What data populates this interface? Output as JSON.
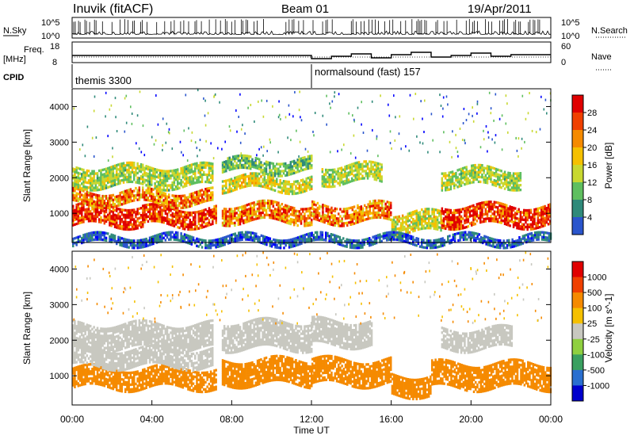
{
  "header": {
    "station": "Inuvik (fitACF)",
    "beam": "Beam 01",
    "date": "19/Apr/2011"
  },
  "panels_top": {
    "nsky_label": "N.Sky",
    "nsky_ticks": [
      "10^5",
      "10^0"
    ],
    "nsearch_label": "N.Search",
    "nsearch_ticks": [
      "10^5",
      "10^0"
    ],
    "freq_label": "Freq.",
    "freq_unit": "[MHz]",
    "freq_ticks": [
      "18",
      "8"
    ],
    "nave_label": "Nave",
    "nave_ticks": [
      "60",
      "0"
    ],
    "cpid_label": "CPID",
    "cpid_segments": [
      {
        "name": "themis 3300",
        "start_hour": 0,
        "end_hour": 12
      },
      {
        "name": "normalsound (fast) 157",
        "start_hour": 12,
        "end_hour": 24
      }
    ]
  },
  "chart_data": [
    {
      "type": "heatmap",
      "name": "power",
      "ylabel": "Slant Range [km]",
      "xlabel": "",
      "ylim": [
        180,
        4500
      ],
      "xlim_hours": [
        0,
        24
      ],
      "yticks": [
        1000,
        2000,
        3000,
        4000
      ],
      "colorbar": {
        "label": "Power [dB]",
        "ticks": [
          4,
          8,
          12,
          16,
          20,
          24,
          28
        ],
        "range": [
          0,
          30
        ],
        "colors": [
          "#0000ff",
          "#2a55cc",
          "#2f8a7a",
          "#5fbf5f",
          "#c8d830",
          "#f5c000",
          "#f58a00",
          "#f04000",
          "#e00000"
        ]
      },
      "bands": [
        {
          "hour_start": 0.0,
          "hour_end": 3.5,
          "range_start": 700,
          "range_end": 1300,
          "value": 27
        },
        {
          "hour_start": 3.5,
          "hour_end": 7.2,
          "range_start": 700,
          "range_end": 1200,
          "value": 27
        },
        {
          "hour_start": 0.0,
          "hour_end": 7.0,
          "range_start": 1300,
          "range_end": 1700,
          "value": 22
        },
        {
          "hour_start": 0.0,
          "hour_end": 7.0,
          "range_start": 1800,
          "range_end": 2400,
          "value": 14
        },
        {
          "hour_start": 7.5,
          "hour_end": 12.0,
          "range_start": 800,
          "range_end": 1300,
          "value": 22
        },
        {
          "hour_start": 7.5,
          "hour_end": 12.0,
          "range_start": 1700,
          "range_end": 2100,
          "value": 16
        },
        {
          "hour_start": 7.5,
          "hour_end": 12.0,
          "range_start": 2200,
          "range_end": 2600,
          "value": 12
        },
        {
          "hour_start": 12.0,
          "hour_end": 16.0,
          "range_start": 800,
          "range_end": 1300,
          "value": 22
        },
        {
          "hour_start": 12.5,
          "hour_end": 15.5,
          "range_start": 1900,
          "range_end": 2400,
          "value": 14
        },
        {
          "hour_start": 16.0,
          "hour_end": 18.5,
          "range_start": 500,
          "range_end": 1100,
          "value": 16
        },
        {
          "hour_start": 18.5,
          "hour_end": 24.0,
          "range_start": 700,
          "range_end": 1300,
          "value": 27
        },
        {
          "hour_start": 18.5,
          "hour_end": 22.5,
          "range_start": 1800,
          "range_end": 2300,
          "value": 14
        },
        {
          "hour_start": 0.0,
          "hour_end": 24.0,
          "range_start": 180,
          "range_end": 400,
          "value": 6
        }
      ]
    },
    {
      "type": "heatmap",
      "name": "velocity",
      "ylabel": "Slant Range [km]",
      "xlabel": "Time UT",
      "ylim": [
        180,
        4500
      ],
      "xlim_hours": [
        0,
        24
      ],
      "yticks": [
        1000,
        2000,
        3000,
        4000
      ],
      "xticks": [
        "00:00",
        "04:00",
        "08:00",
        "12:00",
        "16:00",
        "20:00",
        "00:00"
      ],
      "colorbar": {
        "label": "Velocity [m s^-1]",
        "ticks": [
          "1000",
          "500",
          "100",
          "25",
          "-25",
          "-100",
          "-500",
          "-1000"
        ],
        "colors": [
          "#0000cc",
          "#2a6fd0",
          "#3aa060",
          "#8fd040",
          "#c8c8c0",
          "#f5c000",
          "#f58a00",
          "#f04000",
          "#e00000"
        ]
      },
      "bands": [
        {
          "hour_start": 0.0,
          "hour_end": 7.2,
          "range_start": 700,
          "range_end": 1300,
          "value": -300
        },
        {
          "hour_start": 0.0,
          "hour_end": 7.0,
          "range_start": 1300,
          "range_end": 1800,
          "value": 0
        },
        {
          "hour_start": 0.0,
          "hour_end": 7.0,
          "range_start": 1800,
          "range_end": 2500,
          "value": 0
        },
        {
          "hour_start": 7.5,
          "hour_end": 12.0,
          "range_start": 800,
          "range_end": 1500,
          "value": -300
        },
        {
          "hour_start": 7.5,
          "hour_end": 12.0,
          "range_start": 1800,
          "range_end": 2600,
          "value": 0
        },
        {
          "hour_start": 12.0,
          "hour_end": 16.0,
          "range_start": 800,
          "range_end": 1500,
          "value": -300
        },
        {
          "hour_start": 12.0,
          "hour_end": 15.0,
          "range_start": 1900,
          "range_end": 2600,
          "value": 0
        },
        {
          "hour_start": 16.0,
          "hour_end": 18.0,
          "range_start": 500,
          "range_end": 1100,
          "value": -150
        },
        {
          "hour_start": 18.0,
          "hour_end": 24.0,
          "range_start": 700,
          "range_end": 1400,
          "value": -300
        },
        {
          "hour_start": 18.5,
          "hour_end": 22.0,
          "range_start": 1800,
          "range_end": 2400,
          "value": 0
        }
      ]
    }
  ]
}
